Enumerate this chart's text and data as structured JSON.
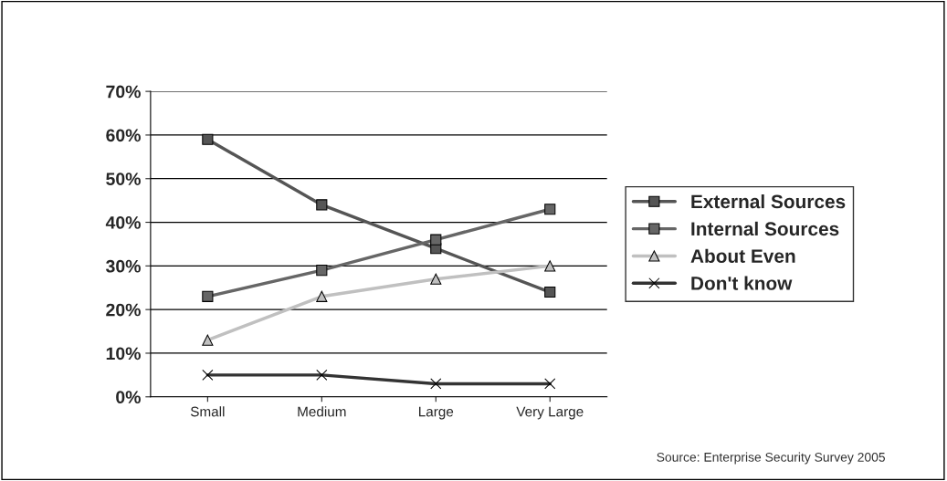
{
  "chart_data": {
    "type": "line",
    "categories": [
      "Small",
      "Medium",
      "Large",
      "Very Large"
    ],
    "series": [
      {
        "name": "External Sources",
        "color": "#555555",
        "values": [
          59,
          44,
          34,
          24
        ],
        "marker": "square"
      },
      {
        "name": "Internal Sources",
        "color": "#666666",
        "values": [
          23,
          29,
          36,
          43
        ],
        "marker": "square"
      },
      {
        "name": "About Even",
        "color": "#c0c0c0",
        "values": [
          13,
          23,
          27,
          30
        ],
        "marker": "triangle"
      },
      {
        "name": "Don't know",
        "color": "#333333",
        "values": [
          5,
          5,
          3,
          3
        ],
        "marker": "cross"
      }
    ],
    "ylim": [
      0,
      70
    ],
    "yticks": [
      {
        "value": 0,
        "label": "0%"
      },
      {
        "value": 10,
        "label": "10%"
      },
      {
        "value": 20,
        "label": "20%"
      },
      {
        "value": 30,
        "label": "30%"
      },
      {
        "value": 40,
        "label": "40%"
      },
      {
        "value": 50,
        "label": "50%"
      },
      {
        "value": 60,
        "label": "60%"
      },
      {
        "value": 70,
        "label": "70%"
      }
    ],
    "grid": "y",
    "legend": "right",
    "annotations": [
      "Source: Enterprise Security Survey 2005"
    ]
  }
}
